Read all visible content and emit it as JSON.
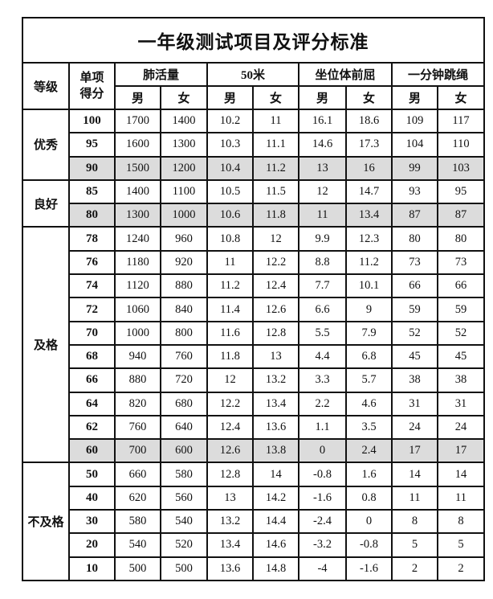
{
  "title": "一年级测试项目及评分标准",
  "headers": {
    "grade": "等级",
    "score": "单项得分",
    "items": [
      "肺活量",
      "50米",
      "坐位体前屈",
      "一分钟跳绳"
    ],
    "male": "男",
    "female": "女"
  },
  "shade_color": "#dcdcdc",
  "groups": [
    {
      "grade": "优秀",
      "rows": [
        {
          "score": "100",
          "shaded": false,
          "values": [
            "1700",
            "1400",
            "10.2",
            "11",
            "16.1",
            "18.6",
            "109",
            "117"
          ]
        },
        {
          "score": "95",
          "shaded": false,
          "values": [
            "1600",
            "1300",
            "10.3",
            "11.1",
            "14.6",
            "17.3",
            "104",
            "110"
          ]
        },
        {
          "score": "90",
          "shaded": true,
          "values": [
            "1500",
            "1200",
            "10.4",
            "11.2",
            "13",
            "16",
            "99",
            "103"
          ]
        }
      ]
    },
    {
      "grade": "良好",
      "rows": [
        {
          "score": "85",
          "shaded": false,
          "values": [
            "1400",
            "1100",
            "10.5",
            "11.5",
            "12",
            "14.7",
            "93",
            "95"
          ]
        },
        {
          "score": "80",
          "shaded": true,
          "values": [
            "1300",
            "1000",
            "10.6",
            "11.8",
            "11",
            "13.4",
            "87",
            "87"
          ]
        }
      ]
    },
    {
      "grade": "及格",
      "rows": [
        {
          "score": "78",
          "shaded": false,
          "values": [
            "1240",
            "960",
            "10.8",
            "12",
            "9.9",
            "12.3",
            "80",
            "80"
          ]
        },
        {
          "score": "76",
          "shaded": false,
          "values": [
            "1180",
            "920",
            "11",
            "12.2",
            "8.8",
            "11.2",
            "73",
            "73"
          ]
        },
        {
          "score": "74",
          "shaded": false,
          "values": [
            "1120",
            "880",
            "11.2",
            "12.4",
            "7.7",
            "10.1",
            "66",
            "66"
          ]
        },
        {
          "score": "72",
          "shaded": false,
          "values": [
            "1060",
            "840",
            "11.4",
            "12.6",
            "6.6",
            "9",
            "59",
            "59"
          ]
        },
        {
          "score": "70",
          "shaded": false,
          "values": [
            "1000",
            "800",
            "11.6",
            "12.8",
            "5.5",
            "7.9",
            "52",
            "52"
          ]
        },
        {
          "score": "68",
          "shaded": false,
          "values": [
            "940",
            "760",
            "11.8",
            "13",
            "4.4",
            "6.8",
            "45",
            "45"
          ]
        },
        {
          "score": "66",
          "shaded": false,
          "values": [
            "880",
            "720",
            "12",
            "13.2",
            "3.3",
            "5.7",
            "38",
            "38"
          ]
        },
        {
          "score": "64",
          "shaded": false,
          "values": [
            "820",
            "680",
            "12.2",
            "13.4",
            "2.2",
            "4.6",
            "31",
            "31"
          ]
        },
        {
          "score": "62",
          "shaded": false,
          "values": [
            "760",
            "640",
            "12.4",
            "13.6",
            "1.1",
            "3.5",
            "24",
            "24"
          ]
        },
        {
          "score": "60",
          "shaded": true,
          "values": [
            "700",
            "600",
            "12.6",
            "13.8",
            "0",
            "2.4",
            "17",
            "17"
          ]
        }
      ]
    },
    {
      "grade": "不及格",
      "rows": [
        {
          "score": "50",
          "shaded": false,
          "values": [
            "660",
            "580",
            "12.8",
            "14",
            "-0.8",
            "1.6",
            "14",
            "14"
          ]
        },
        {
          "score": "40",
          "shaded": false,
          "values": [
            "620",
            "560",
            "13",
            "14.2",
            "-1.6",
            "0.8",
            "11",
            "11"
          ]
        },
        {
          "score": "30",
          "shaded": false,
          "values": [
            "580",
            "540",
            "13.2",
            "14.4",
            "-2.4",
            "0",
            "8",
            "8"
          ]
        },
        {
          "score": "20",
          "shaded": false,
          "values": [
            "540",
            "520",
            "13.4",
            "14.6",
            "-3.2",
            "-0.8",
            "5",
            "5"
          ]
        },
        {
          "score": "10",
          "shaded": false,
          "values": [
            "500",
            "500",
            "13.6",
            "14.8",
            "-4",
            "-1.6",
            "2",
            "2"
          ]
        }
      ]
    }
  ]
}
